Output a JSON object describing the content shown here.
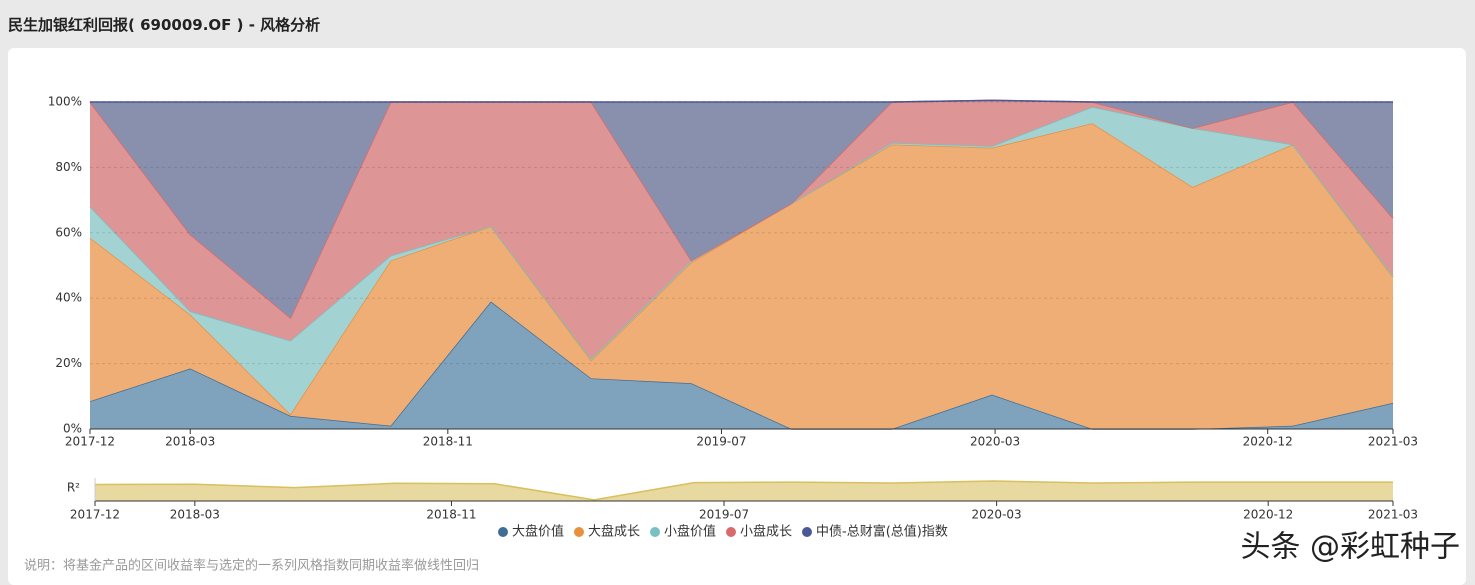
{
  "header": {
    "title": "民生加银红利回报( 690009.OF ) - 风格分析"
  },
  "chart_data": {
    "type": "stacked-area",
    "x": [
      0,
      1,
      2,
      3,
      4,
      5,
      6,
      7,
      8,
      9,
      10,
      11,
      12,
      13
    ],
    "xlim": [
      0,
      13
    ],
    "xticks": [
      {
        "value": 0,
        "label": "2017-12"
      },
      {
        "value": 1,
        "label": "2018-03"
      },
      {
        "value": 3.57,
        "label": "2018-11"
      },
      {
        "value": 6.3,
        "label": "2019-07"
      },
      {
        "value": 9.03,
        "label": "2020-03"
      },
      {
        "value": 11.75,
        "label": "2020-12"
      },
      {
        "value": 13,
        "label": "2021-03"
      }
    ],
    "ylim": [
      0,
      100
    ],
    "yticks": [
      {
        "value": 0,
        "label": "0%"
      },
      {
        "value": 20,
        "label": "20%"
      },
      {
        "value": 40,
        "label": "40%"
      },
      {
        "value": 60,
        "label": "60%"
      },
      {
        "value": 80,
        "label": "80%"
      },
      {
        "value": 100,
        "label": "100%"
      }
    ],
    "grid": true,
    "series": [
      {
        "name": "大盘价值",
        "color": "#3f6e94",
        "fill": "#7fa2bd",
        "values": [
          8.5,
          18.5,
          4,
          1,
          39,
          15.5,
          14,
          0,
          0,
          10.5,
          0,
          0,
          1,
          8
        ]
      },
      {
        "name": "大盘成长",
        "color": "#e9903f",
        "fill": "#eeae76",
        "values": [
          50,
          16.5,
          0.5,
          50.5,
          23,
          5.5,
          37,
          69,
          87,
          75.5,
          93.5,
          74,
          86,
          38.5
        ]
      },
      {
        "name": "小盘价值",
        "color": "#78c0c3",
        "fill": "#a3d2d3",
        "values": [
          9.5,
          1,
          22.5,
          1.5,
          0,
          0.5,
          0.5,
          0,
          0.5,
          0.5,
          5,
          18,
          0,
          0.5
        ]
      },
      {
        "name": "小盘成长",
        "color": "#d86a6c",
        "fill": "#de9595",
        "values": [
          32,
          23.5,
          7,
          47,
          38,
          78.5,
          0,
          0,
          12.5,
          14,
          1.5,
          0,
          13,
          17.5
        ]
      },
      {
        "name": "中债-总财富(总值)指数",
        "color": "#4a5897",
        "fill": "#8890ad",
        "values": [
          0,
          40.5,
          66,
          0,
          0,
          0,
          48.5,
          31,
          0,
          0,
          0,
          8,
          0,
          35.5
        ]
      }
    ],
    "r2": {
      "label": "R²",
      "ylim": [
        0,
        1
      ],
      "color": "#d9bf5e",
      "fill": "#e8d9a0",
      "values": [
        0.72,
        0.73,
        0.58,
        0.77,
        0.75,
        0.05,
        0.8,
        0.82,
        0.78,
        0.87,
        0.78,
        0.82,
        0.82,
        0.82
      ]
    },
    "note": "说明：将基金产品的区间收益率与选定的一系列风格指数同期收益率做线性回归",
    "watermark": "头条 @彩虹种子"
  }
}
